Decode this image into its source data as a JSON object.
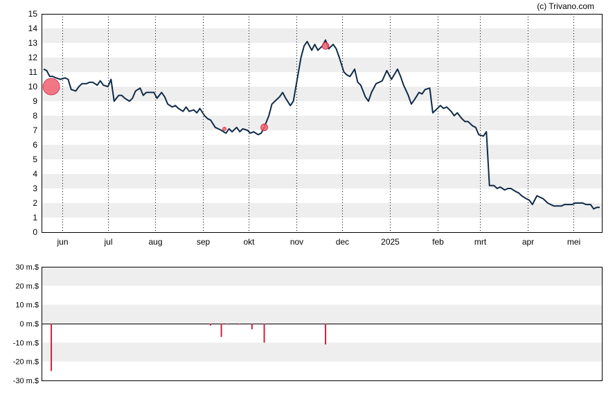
{
  "credit": "(c) Trivano.com",
  "colors": {
    "line": "#0e2a48",
    "band": "#eeeeee",
    "marker": "#f06070",
    "marker_stroke": "#d02040",
    "volume_bar": "#d0203a",
    "axis": "#000000"
  },
  "chart_data": [
    {
      "type": "line",
      "title": "",
      "xlabel": "",
      "ylabel": "",
      "ylim": [
        0,
        15
      ],
      "yticks": [
        "0",
        "1",
        "2",
        "3",
        "4",
        "5",
        "6",
        "7",
        "8",
        "9",
        "10",
        "11",
        "12",
        "13",
        "14",
        "15"
      ],
      "xticks": [
        {
          "label": "jun",
          "date": "2024-06-01"
        },
        {
          "label": "jul",
          "date": "2024-07-01"
        },
        {
          "label": "aug",
          "date": "2024-08-01"
        },
        {
          "label": "sep",
          "date": "2024-09-01"
        },
        {
          "label": "okt",
          "date": "2024-10-01"
        },
        {
          "label": "nov",
          "date": "2024-11-01"
        },
        {
          "label": "dec",
          "date": "2024-12-01"
        },
        {
          "label": "2025",
          "date": "2025-01-01"
        },
        {
          "label": "feb",
          "date": "2025-02-01"
        },
        {
          "label": "mrt",
          "date": "2025-03-01"
        },
        {
          "label": "apr",
          "date": "2025-04-01"
        },
        {
          "label": "mei",
          "date": "2025-05-01"
        }
      ],
      "xlim": [
        "2024-05-20",
        "2025-05-18"
      ],
      "grid": "alternating horizontal bands, dotted vertical month lines",
      "series": [
        {
          "name": "",
          "points": [
            [
              "2024-05-20",
              11.2
            ],
            [
              "2024-05-22",
              11.1
            ],
            [
              "2024-05-24",
              10.7
            ],
            [
              "2024-05-26",
              10.7
            ],
            [
              "2024-05-28",
              10.6
            ],
            [
              "2024-05-31",
              10.5
            ],
            [
              "2024-06-03",
              10.6
            ],
            [
              "2024-06-05",
              10.5
            ],
            [
              "2024-06-07",
              9.8
            ],
            [
              "2024-06-10",
              9.7
            ],
            [
              "2024-06-12",
              10.0
            ],
            [
              "2024-06-14",
              10.2
            ],
            [
              "2024-06-17",
              10.2
            ],
            [
              "2024-06-19",
              10.3
            ],
            [
              "2024-06-21",
              10.3
            ],
            [
              "2024-06-24",
              10.1
            ],
            [
              "2024-06-26",
              10.4
            ],
            [
              "2024-06-28",
              10.1
            ],
            [
              "2024-07-01",
              10.0
            ],
            [
              "2024-07-03",
              10.5
            ],
            [
              "2024-07-05",
              9.0
            ],
            [
              "2024-07-08",
              9.4
            ],
            [
              "2024-07-10",
              9.4
            ],
            [
              "2024-07-12",
              9.2
            ],
            [
              "2024-07-15",
              9.0
            ],
            [
              "2024-07-17",
              9.2
            ],
            [
              "2024-07-19",
              9.7
            ],
            [
              "2024-07-22",
              9.9
            ],
            [
              "2024-07-24",
              9.4
            ],
            [
              "2024-07-26",
              9.6
            ],
            [
              "2024-07-29",
              9.6
            ],
            [
              "2024-07-31",
              9.6
            ],
            [
              "2024-08-02",
              9.2
            ],
            [
              "2024-08-05",
              9.6
            ],
            [
              "2024-08-07",
              9.3
            ],
            [
              "2024-08-09",
              8.8
            ],
            [
              "2024-08-12",
              8.6
            ],
            [
              "2024-08-14",
              8.7
            ],
            [
              "2024-08-16",
              8.5
            ],
            [
              "2024-08-19",
              8.3
            ],
            [
              "2024-08-21",
              8.6
            ],
            [
              "2024-08-23",
              8.3
            ],
            [
              "2024-08-26",
              8.4
            ],
            [
              "2024-08-28",
              8.2
            ],
            [
              "2024-08-30",
              8.5
            ],
            [
              "2024-09-02",
              8.0
            ],
            [
              "2024-09-04",
              7.8
            ],
            [
              "2024-09-06",
              7.7
            ],
            [
              "2024-09-09",
              7.2
            ],
            [
              "2024-09-11",
              7.1
            ],
            [
              "2024-09-13",
              7.0
            ],
            [
              "2024-09-16",
              6.8
            ],
            [
              "2024-09-18",
              7.1
            ],
            [
              "2024-09-20",
              6.9
            ],
            [
              "2024-09-23",
              7.2
            ],
            [
              "2024-09-25",
              6.9
            ],
            [
              "2024-09-27",
              7.1
            ],
            [
              "2024-09-30",
              7.0
            ],
            [
              "2024-10-02",
              6.8
            ],
            [
              "2024-10-04",
              6.9
            ],
            [
              "2024-10-07",
              6.7
            ],
            [
              "2024-10-09",
              6.8
            ],
            [
              "2024-10-11",
              7.2
            ],
            [
              "2024-10-14",
              8.0
            ],
            [
              "2024-10-16",
              8.8
            ],
            [
              "2024-10-18",
              9.0
            ],
            [
              "2024-10-21",
              9.3
            ],
            [
              "2024-10-23",
              9.6
            ],
            [
              "2024-10-25",
              9.2
            ],
            [
              "2024-10-28",
              8.7
            ],
            [
              "2024-10-30",
              9.0
            ],
            [
              "2024-11-01",
              10.2
            ],
            [
              "2024-11-04",
              12.0
            ],
            [
              "2024-11-06",
              12.8
            ],
            [
              "2024-11-08",
              13.1
            ],
            [
              "2024-11-11",
              12.5
            ],
            [
              "2024-11-13",
              12.9
            ],
            [
              "2024-11-15",
              12.5
            ],
            [
              "2024-11-18",
              12.8
            ],
            [
              "2024-11-20",
              13.2
            ],
            [
              "2024-11-22",
              12.6
            ],
            [
              "2024-11-25",
              12.9
            ],
            [
              "2024-11-27",
              12.6
            ],
            [
              "2024-11-29",
              12.0
            ],
            [
              "2024-12-02",
              11.0
            ],
            [
              "2024-12-04",
              10.8
            ],
            [
              "2024-12-06",
              10.7
            ],
            [
              "2024-12-09",
              11.2
            ],
            [
              "2024-12-11",
              10.3
            ],
            [
              "2024-12-13",
              10.1
            ],
            [
              "2024-12-16",
              9.3
            ],
            [
              "2024-12-18",
              9.0
            ],
            [
              "2024-12-20",
              9.6
            ],
            [
              "2024-12-23",
              10.2
            ],
            [
              "2024-12-27",
              10.4
            ],
            [
              "2024-12-30",
              11.1
            ],
            [
              "2025-01-02",
              10.5
            ],
            [
              "2025-01-06",
              11.2
            ],
            [
              "2025-01-08",
              10.7
            ],
            [
              "2025-01-10",
              10.1
            ],
            [
              "2025-01-13",
              9.4
            ],
            [
              "2025-01-15",
              8.8
            ],
            [
              "2025-01-17",
              9.1
            ],
            [
              "2025-01-20",
              9.6
            ],
            [
              "2025-01-22",
              9.5
            ],
            [
              "2025-01-24",
              9.8
            ],
            [
              "2025-01-27",
              9.9
            ],
            [
              "2025-01-29",
              8.2
            ],
            [
              "2025-01-31",
              8.4
            ],
            [
              "2025-02-03",
              8.7
            ],
            [
              "2025-02-05",
              8.5
            ],
            [
              "2025-02-07",
              8.6
            ],
            [
              "2025-02-10",
              8.3
            ],
            [
              "2025-02-12",
              8.0
            ],
            [
              "2025-02-14",
              8.2
            ],
            [
              "2025-02-17",
              7.8
            ],
            [
              "2025-02-19",
              7.6
            ],
            [
              "2025-02-21",
              7.6
            ],
            [
              "2025-02-24",
              7.3
            ],
            [
              "2025-02-26",
              7.2
            ],
            [
              "2025-02-28",
              6.7
            ],
            [
              "2025-03-03",
              6.6
            ],
            [
              "2025-03-05",
              6.9
            ],
            [
              "2025-03-07",
              3.2
            ],
            [
              "2025-03-10",
              3.2
            ],
            [
              "2025-03-12",
              3.0
            ],
            [
              "2025-03-14",
              3.1
            ],
            [
              "2025-03-17",
              2.9
            ],
            [
              "2025-03-19",
              3.0
            ],
            [
              "2025-03-21",
              3.0
            ],
            [
              "2025-03-24",
              2.8
            ],
            [
              "2025-03-26",
              2.7
            ],
            [
              "2025-03-28",
              2.5
            ],
            [
              "2025-03-31",
              2.3
            ],
            [
              "2025-04-02",
              2.2
            ],
            [
              "2025-04-04",
              1.9
            ],
            [
              "2025-04-07",
              2.5
            ],
            [
              "2025-04-09",
              2.4
            ],
            [
              "2025-04-11",
              2.3
            ],
            [
              "2025-04-14",
              2.0
            ],
            [
              "2025-04-16",
              1.9
            ],
            [
              "2025-04-18",
              1.8
            ],
            [
              "2025-04-21",
              1.8
            ],
            [
              "2025-04-23",
              1.8
            ],
            [
              "2025-04-25",
              1.9
            ],
            [
              "2025-04-28",
              1.9
            ],
            [
              "2025-04-30",
              1.9
            ],
            [
              "2025-05-02",
              2.0
            ],
            [
              "2025-05-05",
              2.0
            ],
            [
              "2025-05-07",
              2.0
            ],
            [
              "2025-05-09",
              1.9
            ],
            [
              "2025-05-12",
              1.9
            ],
            [
              "2025-05-14",
              1.6
            ],
            [
              "2025-05-16",
              1.7
            ],
            [
              "2025-05-18",
              1.7
            ]
          ]
        }
      ],
      "markers": [
        {
          "date": "2024-05-25",
          "y": 10.0,
          "size": "large"
        },
        {
          "date": "2024-09-15",
          "y": 7.1,
          "size": "tiny"
        },
        {
          "date": "2024-10-11",
          "y": 7.2,
          "size": "small"
        },
        {
          "date": "2024-11-20",
          "y": 12.8,
          "size": "small"
        }
      ]
    },
    {
      "type": "bar",
      "title": "",
      "xlabel": "",
      "ylabel": "",
      "ylim": [
        -30,
        30
      ],
      "unit": "m.$",
      "yticks": [
        "30 m.$",
        "20 m.$",
        "10 m.$",
        "0 m.$",
        "-10 m.$",
        "-20 m.$",
        "-30 m.$"
      ],
      "grid": "alternating horizontal bands",
      "bars": [
        {
          "date": "2024-05-25",
          "value": -25
        },
        {
          "date": "2024-09-06",
          "value": -1
        },
        {
          "date": "2024-09-13",
          "value": -7
        },
        {
          "date": "2024-09-17",
          "value": -0.5
        },
        {
          "date": "2024-09-25",
          "value": -0.5
        },
        {
          "date": "2024-10-03",
          "value": -3
        },
        {
          "date": "2024-10-11",
          "value": -10
        },
        {
          "date": "2024-11-20",
          "value": -11
        }
      ]
    }
  ]
}
